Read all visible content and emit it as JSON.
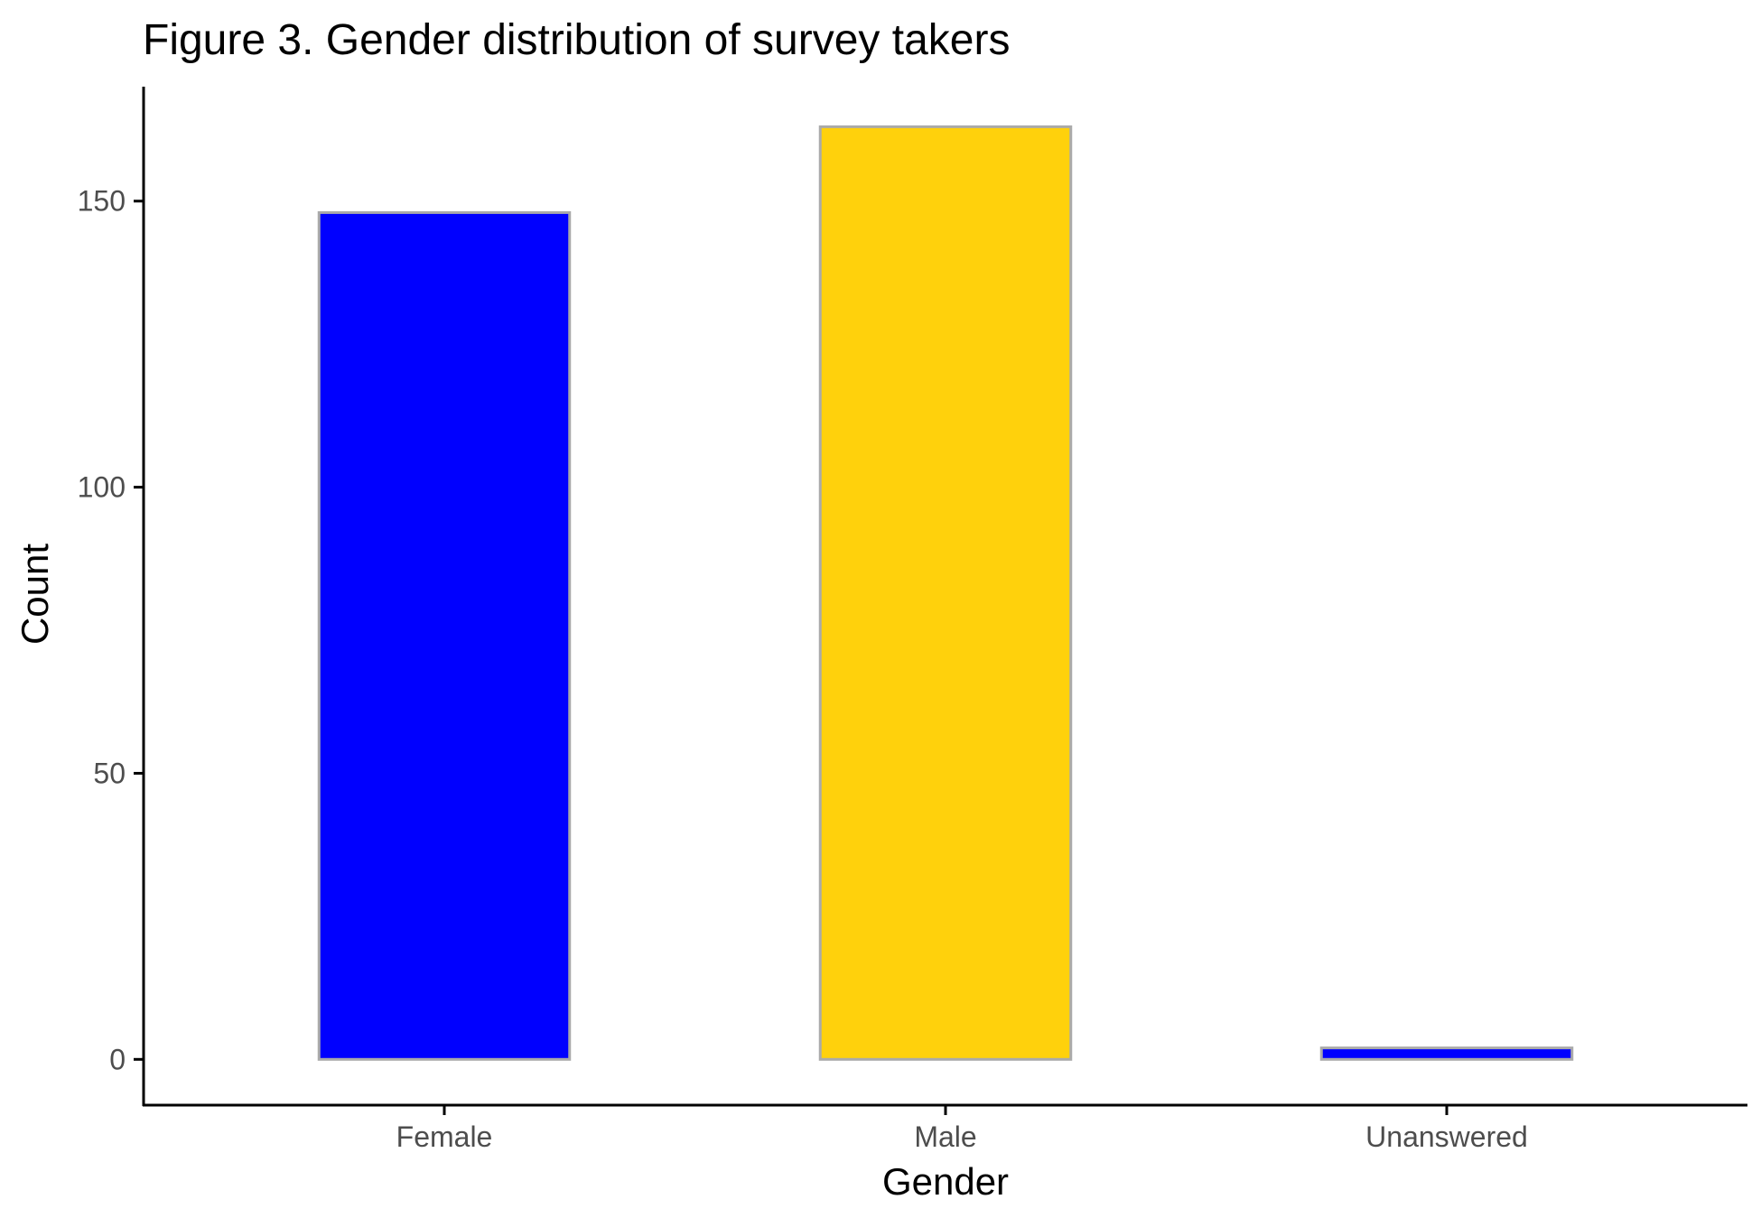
{
  "chart_data": {
    "type": "bar",
    "title": "Figure 3. Gender distribution of survey takers",
    "xlabel": "Gender",
    "ylabel": "Count",
    "categories": [
      "Female",
      "Male",
      "Unanswered"
    ],
    "values": [
      148,
      163,
      2
    ],
    "colors": [
      "#0000FF",
      "#FFD10C",
      "#0000FF"
    ],
    "bar_outline_color": "#AAAAAA",
    "ylim": [
      -8,
      170
    ],
    "yticks": [
      0,
      50,
      100,
      150
    ],
    "ytick_labels": [
      "0",
      "50",
      "100",
      "150"
    ],
    "grid": false,
    "legend": "none"
  }
}
